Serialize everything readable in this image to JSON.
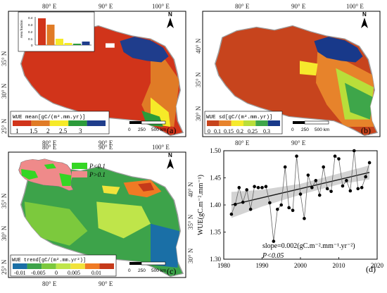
{
  "colors": {
    "frame": "#000000",
    "outline": "#9e9e9e",
    "mean_classes": [
      "#d1341a",
      "#e07b26",
      "#f6ea28",
      "#2b9b3a",
      "#1f3d8c"
    ],
    "sd_classes": [
      "#c7441d",
      "#e7832b",
      "#f6ea2c",
      "#b9de3a",
      "#3ea64a",
      "#18398a"
    ],
    "trend_classes": [
      "#1a6fa6",
      "#3da34a",
      "#7cc93d",
      "#bfe54a",
      "#f1e33b",
      "#f07a24",
      "#c53a1a"
    ],
    "inset_lt": "#35d624",
    "inset_gt": "#ef8a8a",
    "ci_band": "#d3d3d3",
    "fit_line": "#1a1a1a",
    "series_line": "#666666",
    "marker": "#000000"
  },
  "panel_a": {
    "label": "(a)",
    "legend_title": "WUE mean[gC/(m².mm.yr)]",
    "legend_ticks": [
      "1",
      "1.5",
      "2",
      "2.5",
      "3"
    ],
    "top_ticks": [
      "80° E",
      "90° E",
      "100° E"
    ],
    "bottom_ticks": [
      "80° E",
      "90° E"
    ],
    "left_ticks": [
      "35° N",
      "30° N",
      "25° N"
    ],
    "scale_ticks": [
      "0",
      "250",
      "500 km"
    ],
    "north": "N",
    "inset_ylabel": "Area fraction",
    "inset_yticks": [
      "0.4",
      "0.3",
      "0.2",
      "0.1",
      "0"
    ],
    "inset_bar_fractions": [
      0.38,
      0.29,
      0.09,
      0.03,
      0.02,
      0.05
    ]
  },
  "panel_b": {
    "label": "(b)",
    "legend_title": "WUE sd[gC/(m².mm.yr)]",
    "legend_ticks": [
      "0",
      "0.1",
      "0.15",
      "0.2",
      "0.25",
      "0.3"
    ],
    "top_ticks": [
      "80° E",
      "90° E",
      "100° E"
    ],
    "bottom_ticks": [
      "80° E",
      "90° E"
    ],
    "right_ticks": [
      "40° N",
      "35° N",
      "30° N"
    ],
    "scale_ticks": [
      "0",
      "250",
      "500 km"
    ],
    "north": "N"
  },
  "panel_c": {
    "label": "(c)",
    "legend_title": "WUE trend[gC/(m².mm.yr²)]",
    "legend_ticks": [
      "-0.01",
      "-0.005",
      "0",
      "0.005",
      "0.01"
    ],
    "top_ticks": [
      "80° E",
      "90° E",
      "100° E"
    ],
    "bottom_ticks": [
      "80° E",
      "90° E"
    ],
    "left_ticks": [
      "35° N",
      "30° N",
      "25° N"
    ],
    "right_ticks": [
      "40° N",
      "35° N",
      "30° N"
    ],
    "scale_ticks": [
      "0",
      "250",
      "500 km"
    ],
    "north": "N",
    "inset_legend": [
      {
        "label": "P<0.1"
      },
      {
        "label": "P>0.1"
      }
    ]
  },
  "chart_data": {
    "type": "line",
    "panel_label": "(d)",
    "ylabel": "WUE(gC.m⁻².mm⁻¹)",
    "xlabel": "",
    "xlim": [
      1980,
      2020
    ],
    "ylim": [
      1.3,
      1.5
    ],
    "xticks": [
      1980,
      1990,
      2000,
      2010,
      2020
    ],
    "yticks": [
      1.3,
      1.35,
      1.4,
      1.45,
      1.5
    ],
    "ytick_labels": [
      "1.30",
      "1.35",
      "1.40",
      "1.45",
      "1.50"
    ],
    "grid": false,
    "annotation_slope": "slope=0.002(gC.m⁻².mm⁻¹.yr⁻²)",
    "annotation_p": "P<0.05",
    "series": [
      {
        "x": [
          1982,
          1983,
          1984,
          1985,
          1986,
          1987,
          1988,
          1989,
          1990,
          1991,
          1992,
          1993,
          1994,
          1995,
          1996,
          1997,
          1998,
          1999,
          2000,
          2001,
          2002,
          2003,
          2004,
          2005,
          2006,
          2007,
          2008,
          2009,
          2010,
          2011,
          2012,
          2013,
          2014,
          2015,
          2016,
          2017,
          2018
        ],
        "values": [
          1.383,
          1.401,
          1.432,
          1.405,
          1.428,
          1.392,
          1.434,
          1.432,
          1.432,
          1.434,
          1.404,
          1.333,
          1.392,
          1.4,
          1.47,
          1.395,
          1.39,
          1.49,
          1.42,
          1.375,
          1.455,
          1.432,
          1.445,
          1.418,
          1.47,
          1.43,
          1.425,
          1.49,
          1.485,
          1.435,
          1.445,
          1.426,
          1.5,
          1.43,
          1.432,
          1.452,
          1.478
        ]
      }
    ],
    "trend_line": {
      "x": [
        1982,
        2018
      ],
      "values": [
        1.4,
        1.46
      ]
    },
    "ci_band": {
      "x": [
        1982,
        1990,
        2000,
        2010,
        2018
      ],
      "lower": [
        1.376,
        1.397,
        1.419,
        1.438,
        1.447
      ],
      "upper": [
        1.424,
        1.428,
        1.439,
        1.458,
        1.473
      ]
    }
  }
}
